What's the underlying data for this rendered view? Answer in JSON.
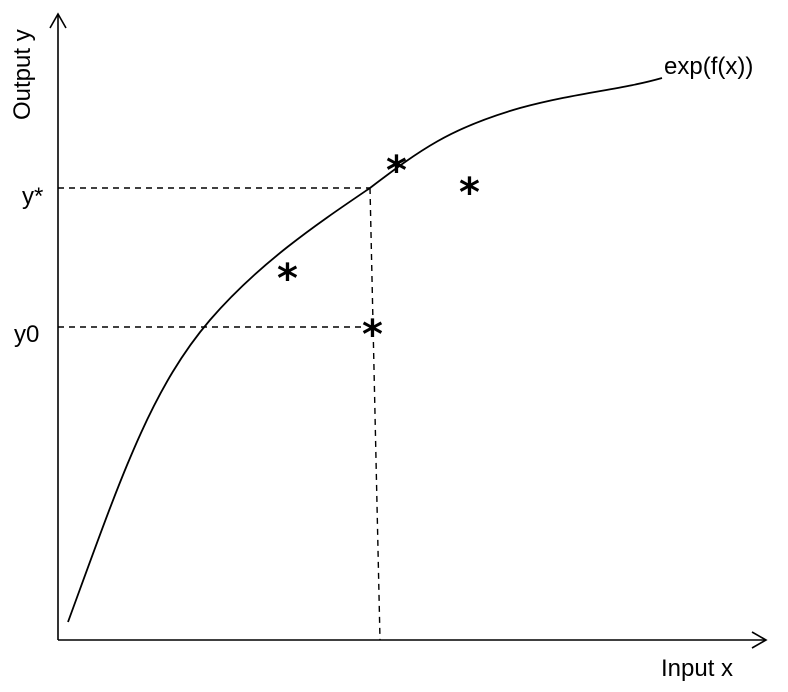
{
  "labels": {
    "x_axis": "Input x",
    "y_axis": "Output y",
    "curve": "exp(f(x))",
    "y_star": "y*",
    "y_zero": "y0"
  },
  "points": [
    {
      "id": "point-star-1",
      "symbol": "*"
    },
    {
      "id": "point-star-2",
      "symbol": "*"
    },
    {
      "id": "point-star-3",
      "symbol": "*"
    },
    {
      "id": "point-star-4",
      "symbol": "*"
    }
  ],
  "colors": {
    "ink": "#000000",
    "background": "#ffffff"
  }
}
